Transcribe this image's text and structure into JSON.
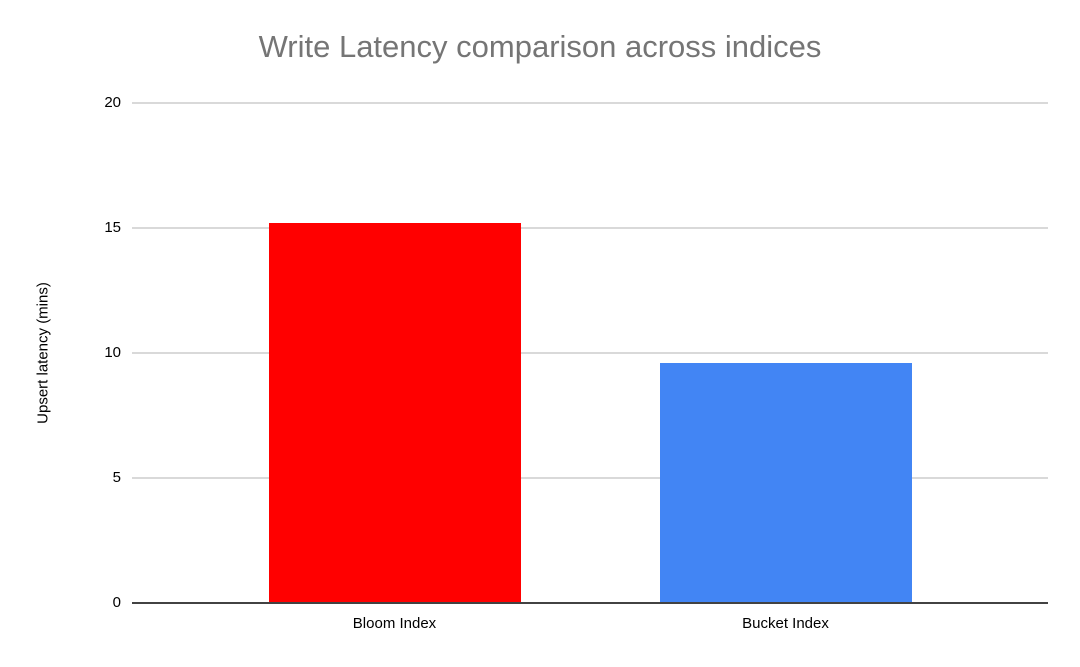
{
  "chart_data": {
    "type": "bar",
    "title": "Write Latency comparison across indices",
    "xlabel": "",
    "ylabel": "Upsert latency (mins)",
    "categories": [
      "Bloom Index",
      "Bucket Index"
    ],
    "values": [
      15.2,
      9.6
    ],
    "series_colors": [
      "#ff0000",
      "#4285f4"
    ],
    "ylim": [
      0,
      20
    ],
    "yticks": [
      0,
      5,
      10,
      15,
      20
    ],
    "grid": true,
    "legend_position": "none"
  },
  "colors": {
    "background": "#ffffff",
    "title_text": "#757575",
    "tick_text": "#000000",
    "gridline": "#d9d9d9",
    "axis_line": "#424242"
  }
}
